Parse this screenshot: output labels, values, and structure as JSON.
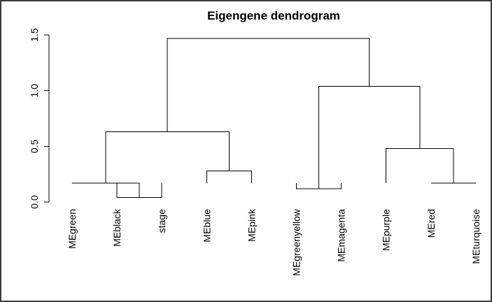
{
  "chart_data": {
    "type": "dendrogram",
    "title": "Eigengene dendrogram",
    "xlabel": "",
    "ylabel": "",
    "ylim": [
      0,
      1.5
    ],
    "yticks": [
      0.0,
      0.5,
      1.0,
      1.5
    ],
    "ytick_labels": [
      "0.0",
      "0.5",
      "1.0",
      "1.5"
    ],
    "leaves": [
      "MEgreen",
      "MEblack",
      "stage",
      "MEblue",
      "MEpink",
      "MEgreenyellow",
      "MEmagenta",
      "MEpurple",
      "MEred",
      "MEturquoise"
    ],
    "merges": [
      {
        "id": "m1",
        "left": "MEblack",
        "right": "stage",
        "height": 0.04
      },
      {
        "id": "m2",
        "left": "MEgreen",
        "right": "m1",
        "height": 0.17
      },
      {
        "id": "m3",
        "left": "MEblue",
        "right": "MEpink",
        "height": 0.28
      },
      {
        "id": "m4",
        "left": "m2",
        "right": "m3",
        "height": 0.63
      },
      {
        "id": "m5",
        "left": "MEgreenyellow",
        "right": "MEmagenta",
        "height": 0.12
      },
      {
        "id": "m6",
        "left": "MEred",
        "right": "MEturquoise",
        "height": 0.17
      },
      {
        "id": "m7",
        "left": "MEpurple",
        "right": "m6",
        "height": 0.48
      },
      {
        "id": "m8",
        "left": "m5",
        "right": "m7",
        "height": 1.04
      },
      {
        "id": "m9",
        "left": "m4",
        "right": "m8",
        "height": 1.47
      }
    ],
    "leaf_height": 0.0,
    "grid": false,
    "legend": "none"
  }
}
